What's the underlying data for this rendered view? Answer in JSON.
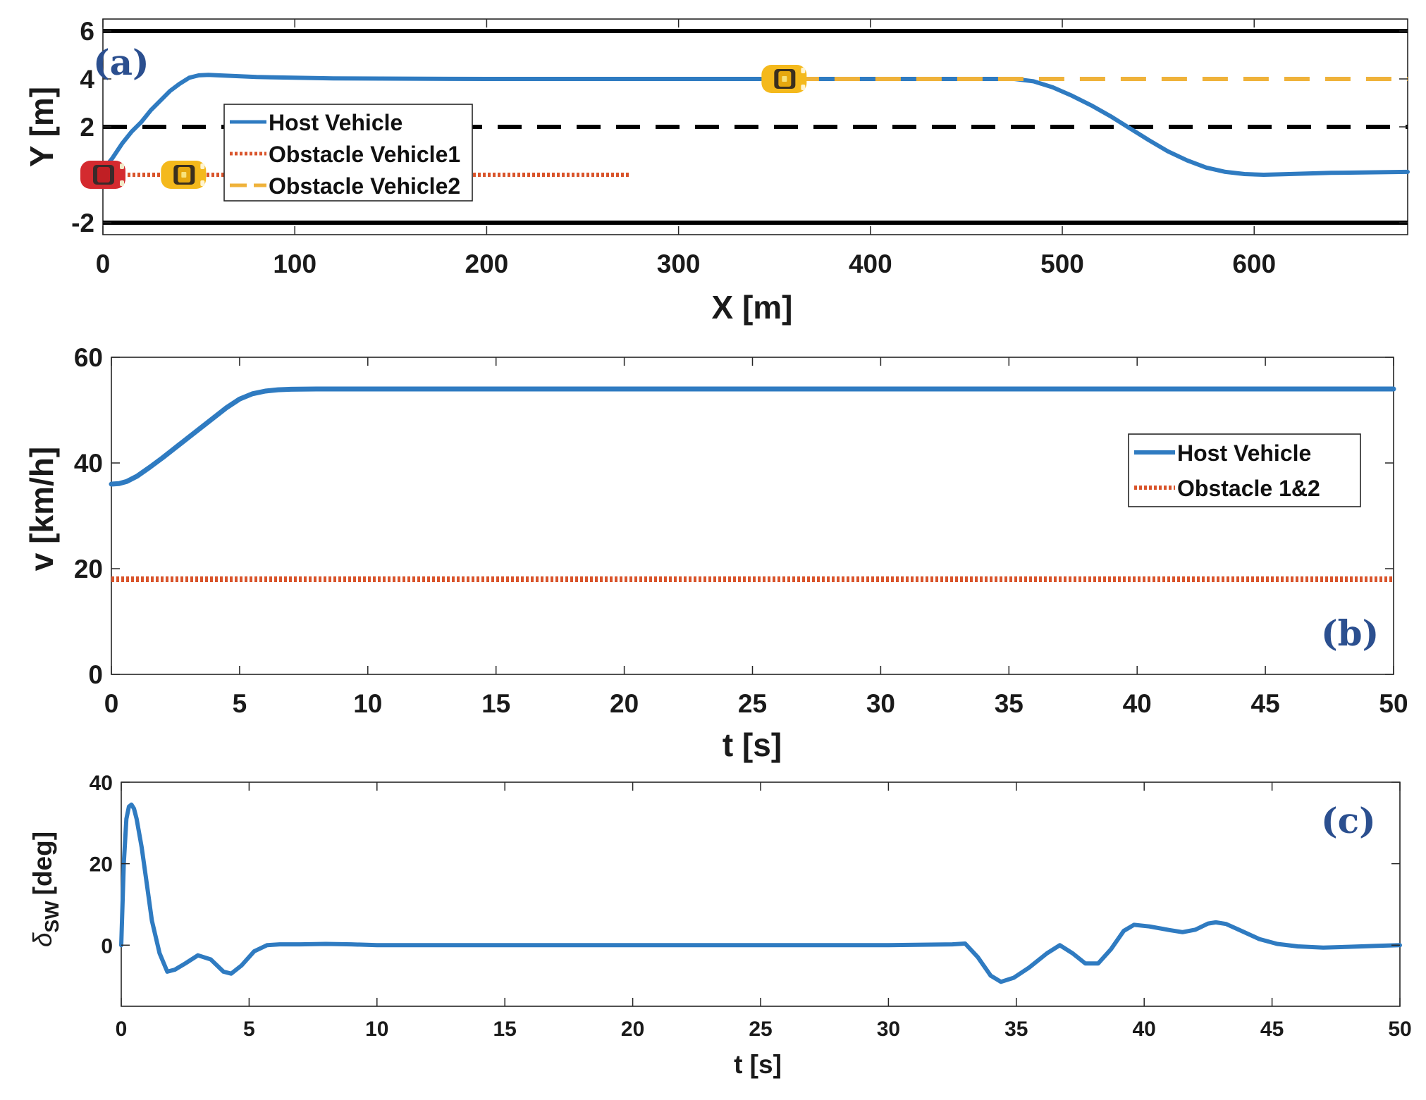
{
  "colors": {
    "host": "#2f7bc1",
    "obstacle1": "#d9542b",
    "obstacle2": "#efb23a",
    "road": "#000000",
    "panel_tag": "#2b4f8f",
    "car_host": "#d42a2f",
    "car_obstacle": "#f4b91c"
  },
  "chart_data": [
    {
      "type": "line",
      "id": "a",
      "panel_tag": "(a)",
      "xlabel": "X [m]",
      "ylabel": "Y [m]",
      "xlim": [
        0,
        680
      ],
      "ylim": [
        -2.5,
        6.5
      ],
      "xticks": [
        0,
        100,
        200,
        300,
        400,
        500,
        600
      ],
      "xtick_labels": [
        "0",
        "100",
        "200",
        "300",
        "400",
        "500",
        "600"
      ],
      "yticks": [
        -2,
        2,
        4,
        6
      ],
      "ytick_labels": [
        "-2",
        "2",
        "4",
        "6"
      ],
      "road_lines": [
        {
          "name": "road-edge-top",
          "y": 6,
          "style": "solid"
        },
        {
          "name": "lane-divider",
          "y": 2,
          "style": "dashed"
        },
        {
          "name": "road-edge-bottom",
          "y": -2,
          "style": "solid"
        }
      ],
      "legend": {
        "position": "upper-left",
        "entries": [
          "Host Vehicle",
          "Obstacle Vehicle1",
          "Obstacle Vehicle2"
        ]
      },
      "series": [
        {
          "name": "Host Vehicle",
          "style": "solid",
          "x": [
            0,
            5,
            10,
            15,
            20,
            25,
            30,
            35,
            40,
            45,
            50,
            55,
            60,
            80,
            120,
            200,
            300,
            380,
            420,
            460,
            475,
            485,
            495,
            505,
            515,
            525,
            535,
            545,
            555,
            565,
            575,
            585,
            595,
            605,
            615,
            640,
            680
          ],
          "y": [
            0.2,
            0.7,
            1.3,
            1.8,
            2.2,
            2.7,
            3.1,
            3.5,
            3.8,
            4.05,
            4.15,
            4.17,
            4.15,
            4.08,
            4.02,
            4.0,
            4.0,
            4.0,
            4.0,
            4.0,
            4.0,
            3.9,
            3.65,
            3.3,
            2.9,
            2.45,
            1.95,
            1.45,
            0.98,
            0.6,
            0.3,
            0.12,
            0.03,
            0.0,
            0.02,
            0.08,
            0.12
          ]
        },
        {
          "name": "Obstacle Vehicle1",
          "style": "dotted",
          "x": [
            0,
            275
          ],
          "y": [
            0,
            0
          ]
        },
        {
          "name": "Obstacle Vehicle2",
          "style": "dashed",
          "x": [
            360,
            680
          ],
          "y": [
            4,
            4
          ]
        }
      ]
    },
    {
      "type": "line",
      "id": "b",
      "panel_tag": "(b)",
      "xlabel": "t [s]",
      "ylabel": "v [km/h]",
      "xlim": [
        0,
        50
      ],
      "ylim": [
        0,
        60
      ],
      "xticks": [
        0,
        5,
        10,
        15,
        20,
        25,
        30,
        35,
        40,
        45,
        50
      ],
      "xtick_labels": [
        "0",
        "5",
        "10",
        "15",
        "20",
        "25",
        "30",
        "35",
        "40",
        "45",
        "50"
      ],
      "yticks": [
        0,
        20,
        40,
        60
      ],
      "ytick_labels": [
        "0",
        "20",
        "40",
        "60"
      ],
      "legend": {
        "position": "right",
        "entries": [
          "Host Vehicle",
          "Obstacle 1&2"
        ]
      },
      "series": [
        {
          "name": "Host Vehicle",
          "style": "solid",
          "x": [
            0,
            0.3,
            0.6,
            1.0,
            1.5,
            2,
            2.5,
            3,
            3.5,
            4,
            4.5,
            5,
            5.5,
            6,
            6.5,
            7,
            8,
            10,
            20,
            30,
            40,
            50
          ],
          "y": [
            36.0,
            36.1,
            36.5,
            37.5,
            39.2,
            41.0,
            42.9,
            44.8,
            46.7,
            48.6,
            50.5,
            52.1,
            53.1,
            53.6,
            53.85,
            53.95,
            54.0,
            54.0,
            54.0,
            54.0,
            54.0,
            54.0
          ]
        },
        {
          "name": "Obstacle 1&2",
          "style": "dotted",
          "x": [
            0,
            50
          ],
          "y": [
            18,
            18
          ]
        }
      ]
    },
    {
      "type": "line",
      "id": "c",
      "panel_tag": "(c)",
      "xlabel": "t [s]",
      "ylabel": "δSW [deg]",
      "ylabel_symbol": "δ",
      "ylabel_subscript": "SW",
      "ylabel_unit": "[deg]",
      "xlim": [
        0,
        50
      ],
      "ylim": [
        -15,
        40
      ],
      "xticks": [
        0,
        5,
        10,
        15,
        20,
        25,
        30,
        35,
        40,
        45,
        50
      ],
      "xtick_labels": [
        "0",
        "5",
        "10",
        "15",
        "20",
        "25",
        "30",
        "35",
        "40",
        "45",
        "50"
      ],
      "yticks": [
        0,
        20,
        40
      ],
      "ytick_labels": [
        "0",
        "20",
        "40"
      ],
      "series": [
        {
          "name": "Host Vehicle",
          "style": "solid",
          "x": [
            0,
            0.1,
            0.2,
            0.3,
            0.4,
            0.5,
            0.6,
            0.8,
            1.0,
            1.2,
            1.5,
            1.8,
            2.1,
            2.5,
            3.0,
            3.5,
            4.0,
            4.3,
            4.7,
            5.2,
            5.7,
            6.2,
            7,
            8,
            9,
            10,
            15,
            20,
            25,
            30,
            32.5,
            33.0,
            33.5,
            34.0,
            34.4,
            34.9,
            35.5,
            36.2,
            36.7,
            37.2,
            37.7,
            38.2,
            38.7,
            39.2,
            39.6,
            40.2,
            41.0,
            41.5,
            42.0,
            42.5,
            42.8,
            43.2,
            43.8,
            44.5,
            45.2,
            46,
            47,
            48,
            49,
            50
          ],
          "y": [
            0,
            20,
            31,
            34,
            34.5,
            33.5,
            31,
            24,
            15,
            6,
            -2,
            -6.5,
            -6,
            -4.5,
            -2.5,
            -3.5,
            -6.5,
            -7,
            -5,
            -1.5,
            0,
            0.2,
            0.2,
            0.3,
            0.2,
            0,
            0,
            0,
            0,
            0,
            0.2,
            0.4,
            -3,
            -7.5,
            -9,
            -8,
            -5.5,
            -2,
            0,
            -2,
            -4.5,
            -4.5,
            -1,
            3.5,
            5,
            4.6,
            3.7,
            3.2,
            3.8,
            5.3,
            5.6,
            5.2,
            3.5,
            1.5,
            0.3,
            -0.3,
            -0.6,
            -0.4,
            -0.2,
            0
          ]
        }
      ]
    }
  ]
}
